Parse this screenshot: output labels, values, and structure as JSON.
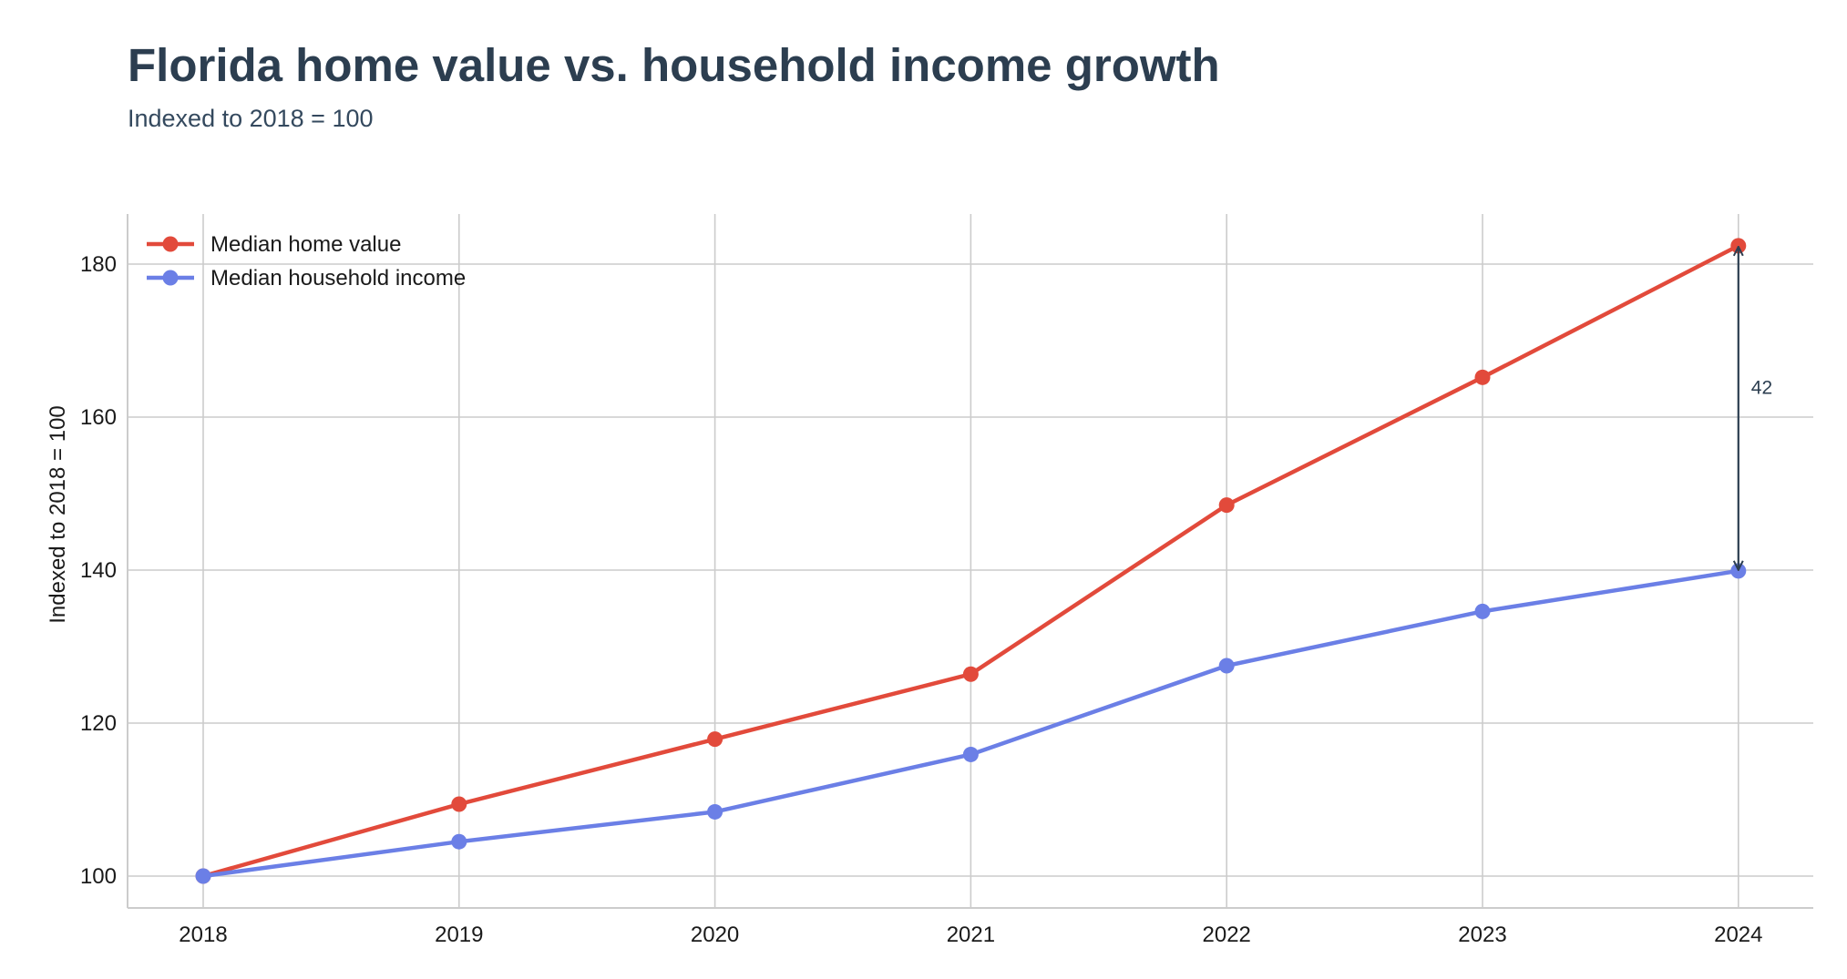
{
  "chart_data": {
    "type": "line",
    "title": "Florida home value vs. household income growth",
    "subtitle": "Indexed to 2018 = 100",
    "xlabel": "",
    "ylabel": "Indexed to 2018 = 100",
    "categories": [
      "2018",
      "2019",
      "2020",
      "2021",
      "2022",
      "2023",
      "2024"
    ],
    "y_ticks": [
      "100",
      "120",
      "140",
      "160",
      "180"
    ],
    "ylim": [
      96,
      187
    ],
    "grid": true,
    "legend_position": "top-left",
    "series": [
      {
        "name": "Median home value",
        "color": "#e24a3b",
        "values": [
          100,
          109.4,
          117.9,
          126.4,
          148.5,
          165.2,
          182.4
        ]
      },
      {
        "name": "Median household income",
        "color": "#6b7fe6",
        "values": [
          100,
          104.5,
          108.4,
          115.9,
          127.5,
          134.6,
          139.9
        ]
      }
    ],
    "annotations": [
      {
        "label": "42",
        "x": "2024",
        "y_from": 139.9,
        "y_to": 182.4,
        "color": "#2c3e50"
      }
    ]
  }
}
